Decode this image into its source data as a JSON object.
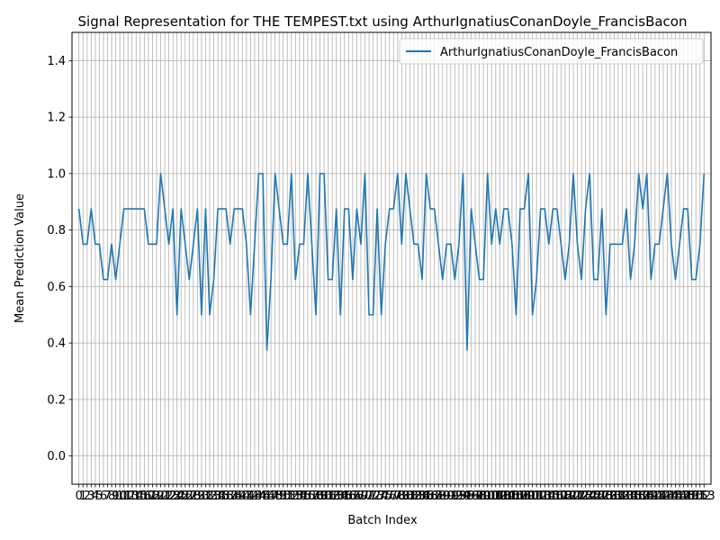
{
  "chart_data": {
    "type": "line",
    "title": "Signal Representation for THE TEMPEST.txt using ArthurIgnatiusConanDoyle_FrancisBacon",
    "xlabel": "Batch Index",
    "ylabel": "Mean Prediction Value",
    "ylim": [
      -0.1,
      1.5
    ],
    "yticks": [
      0.0,
      0.2,
      0.4,
      0.6,
      0.8,
      1.0,
      1.2,
      1.4
    ],
    "xlim": [
      -1.7,
      154.7
    ],
    "grid": true,
    "legend_position": "top-right",
    "color": "#1f77b4",
    "x": [
      0,
      1,
      2,
      3,
      4,
      5,
      6,
      7,
      8,
      9,
      10,
      11,
      12,
      13,
      14,
      15,
      16,
      17,
      18,
      19,
      20,
      21,
      22,
      23,
      24,
      25,
      26,
      27,
      28,
      29,
      30,
      31,
      32,
      33,
      34,
      35,
      36,
      37,
      38,
      39,
      40,
      41,
      42,
      43,
      44,
      45,
      46,
      47,
      48,
      49,
      50,
      51,
      52,
      53,
      54,
      55,
      56,
      57,
      58,
      59,
      60,
      61,
      62,
      63,
      64,
      65,
      66,
      67,
      68,
      69,
      70,
      71,
      72,
      73,
      74,
      75,
      76,
      77,
      78,
      79,
      80,
      81,
      82,
      83,
      84,
      85,
      86,
      87,
      88,
      89,
      90,
      91,
      92,
      93,
      94,
      95,
      96,
      97,
      98,
      99,
      100,
      101,
      102,
      103,
      104,
      105,
      106,
      107,
      108,
      109,
      110,
      111,
      112,
      113,
      114,
      115,
      116,
      117,
      118,
      119,
      120,
      121,
      122,
      123,
      124,
      125,
      126,
      127,
      128,
      129,
      130,
      131,
      132,
      133,
      134,
      135,
      136,
      137,
      138,
      139,
      140,
      141,
      142,
      143,
      144,
      145,
      146,
      147,
      148,
      149,
      150,
      151,
      152,
      153
    ],
    "series": [
      {
        "name": "ArthurIgnatiusConanDoyle_FrancisBacon",
        "values": [
          0.875,
          0.75,
          0.75,
          0.875,
          0.75,
          0.75,
          0.625,
          0.625,
          0.75,
          0.625,
          0.75,
          0.875,
          0.875,
          0.875,
          0.875,
          0.875,
          0.875,
          0.75,
          0.75,
          0.75,
          1.0,
          0.875,
          0.75,
          0.875,
          0.5,
          0.875,
          0.75,
          0.625,
          0.75,
          0.875,
          0.5,
          0.875,
          0.5,
          0.625,
          0.875,
          0.875,
          0.875,
          0.75,
          0.875,
          0.875,
          0.875,
          0.75,
          0.5,
          0.75,
          1.0,
          1.0,
          0.375,
          0.625,
          1.0,
          0.875,
          0.75,
          0.75,
          1.0,
          0.625,
          0.75,
          0.75,
          1.0,
          0.75,
          0.5,
          1.0,
          1.0,
          0.625,
          0.625,
          0.875,
          0.5,
          0.875,
          0.875,
          0.625,
          0.875,
          0.75,
          1.0,
          0.5,
          0.5,
          0.875,
          0.5,
          0.75,
          0.875,
          0.875,
          1.0,
          0.75,
          1.0,
          0.875,
          0.75,
          0.75,
          0.625,
          1.0,
          0.875,
          0.875,
          0.75,
          0.625,
          0.75,
          0.75,
          0.625,
          0.75,
          1.0,
          0.375,
          0.875,
          0.75,
          0.625,
          0.625,
          1.0,
          0.75,
          0.875,
          0.75,
          0.875,
          0.875,
          0.75,
          0.5,
          0.875,
          0.875,
          1.0,
          0.5,
          0.625,
          0.875,
          0.875,
          0.75,
          0.875,
          0.875,
          0.75,
          0.625,
          0.75,
          1.0,
          0.75,
          0.625,
          0.875,
          1.0,
          0.625,
          0.625,
          0.875,
          0.5,
          0.75,
          0.75,
          0.75,
          0.75,
          0.875,
          0.625,
          0.75,
          1.0,
          0.875,
          1.0,
          0.625,
          0.75,
          0.75,
          0.875,
          1.0,
          0.75,
          0.625,
          0.75,
          0.875,
          0.875,
          0.625,
          0.625,
          0.75,
          1.0
        ]
      }
    ]
  }
}
